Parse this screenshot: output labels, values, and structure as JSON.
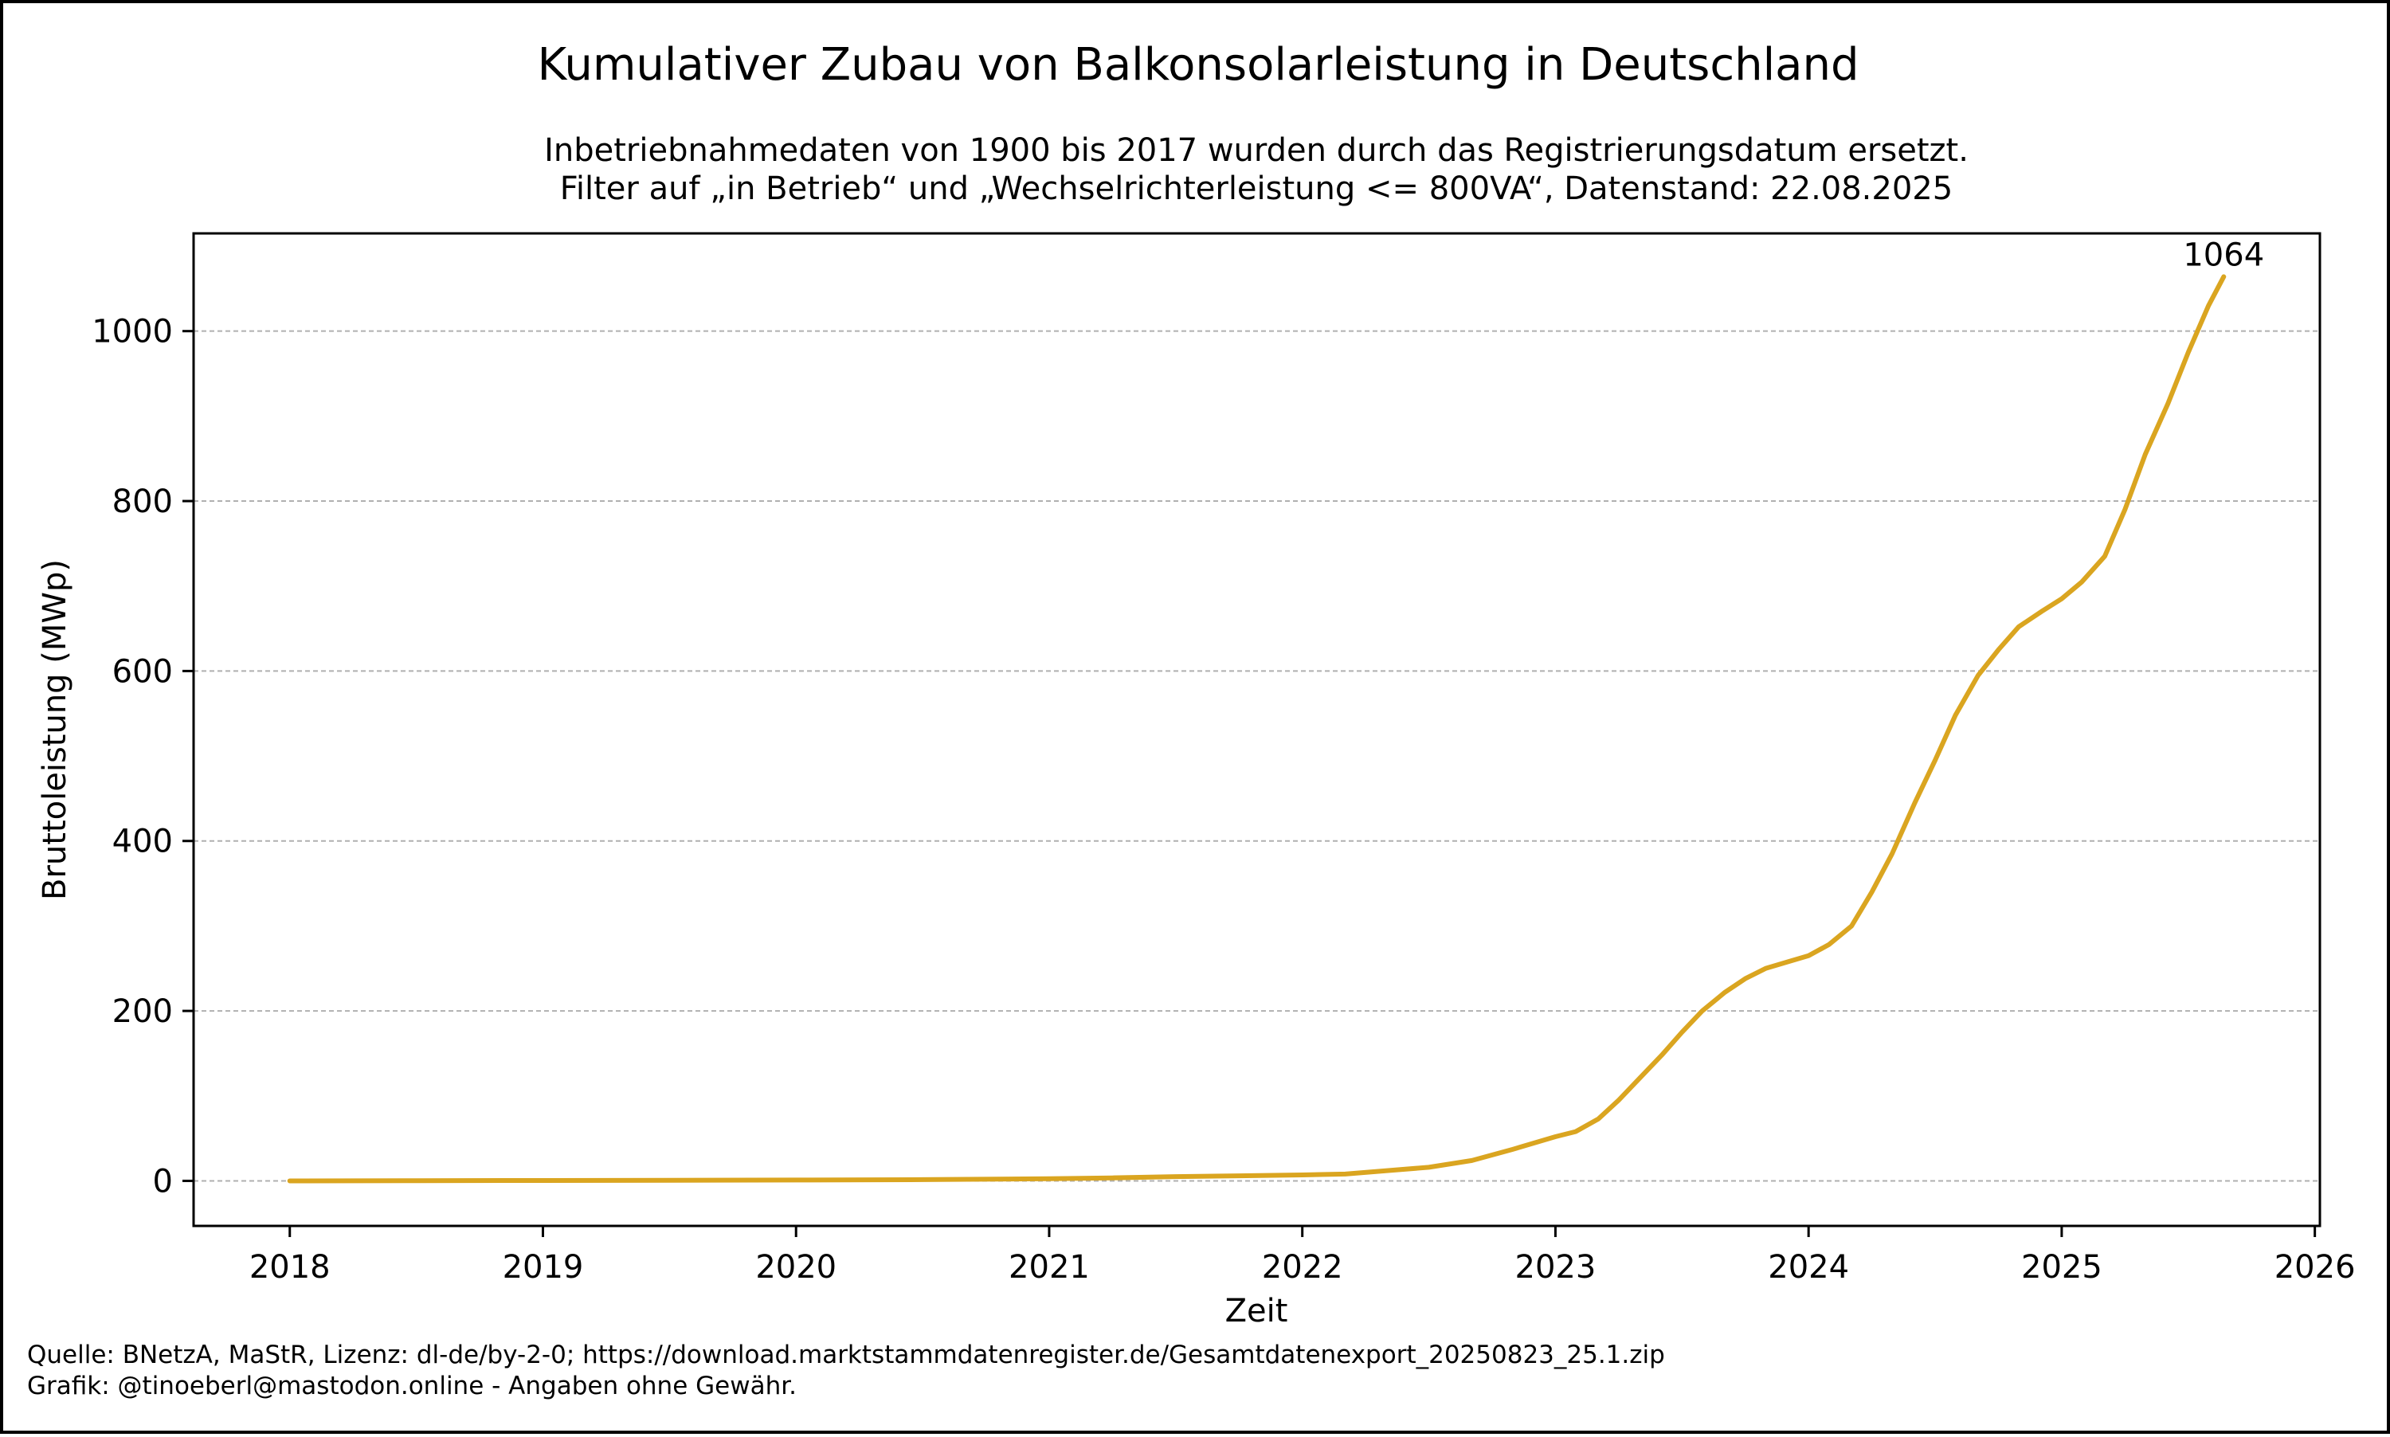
{
  "chart_data": {
    "type": "line",
    "title": "Kumulativer Zubau von Balkonsolarleistung in Deutschland",
    "subtitle_lines": [
      "Inbetriebnahmedaten von 1900 bis 2017 wurden durch das Registrierungsdatum ersetzt.",
      "Filter auf „in Betrieb“ und „Wechselrichterleistung <= 800VA“, Datenstand: 22.08.2025"
    ],
    "xlabel": "Zeit",
    "ylabel": "Bruttoleistung (MWp)",
    "x_ticks": [
      "2018",
      "2019",
      "2020",
      "2021",
      "2022",
      "2023",
      "2024",
      "2025",
      "2026"
    ],
    "y_ticks": [
      "0",
      "200",
      "400",
      "600",
      "800",
      "1000"
    ],
    "xlim": [
      2017.62,
      2026.02
    ],
    "ylim": [
      -53,
      1115
    ],
    "grid": "horizontal dashed",
    "legend": "none",
    "line_color": "#DAA520",
    "series": [
      {
        "x": [
          2018.0,
          2018.5,
          2019.0,
          2019.5,
          2020.0,
          2020.5,
          2021.0,
          2021.25,
          2021.5,
          2021.75,
          2022.0,
          2022.17,
          2022.33,
          2022.5,
          2022.67,
          2022.83,
          2022.92,
          2023.0,
          2023.08,
          2023.17,
          2023.25,
          2023.33,
          2023.42,
          2023.5,
          2023.58,
          2023.67,
          2023.75,
          2023.83,
          2023.92,
          2024.0,
          2024.08,
          2024.17,
          2024.25,
          2024.33,
          2024.42,
          2024.5,
          2024.58,
          2024.67,
          2024.75,
          2024.83,
          2024.92,
          2025.0,
          2025.08,
          2025.17,
          2025.25,
          2025.33,
          2025.42,
          2025.5,
          2025.58,
          2025.64
        ],
        "y": [
          0,
          0.2,
          0.4,
          0.7,
          1,
          1.5,
          2.5,
          3.5,
          5,
          6,
          7,
          8,
          12,
          16,
          24,
          37,
          45,
          52,
          58,
          73,
          95,
          120,
          148,
          175,
          200,
          222,
          238,
          250,
          258,
          265,
          278,
          300,
          340,
          385,
          445,
          495,
          548,
          595,
          625,
          652,
          670,
          685,
          705,
          735,
          790,
          855,
          915,
          975,
          1030,
          1064
        ]
      }
    ],
    "annotations": [
      {
        "text": "1064",
        "x": 2025.64,
        "y": 1064
      }
    ]
  },
  "footer": {
    "line1": "Quelle: BNetzA, MaStR, Lizenz: dl-de/by-2-0; https://download.marktstammdatenregister.de/Gesamtdatenexport_20250823_25.1.zip",
    "line2": "Grafik: @tinoeberl@mastodon.online - Angaben ohne Gewähr."
  }
}
